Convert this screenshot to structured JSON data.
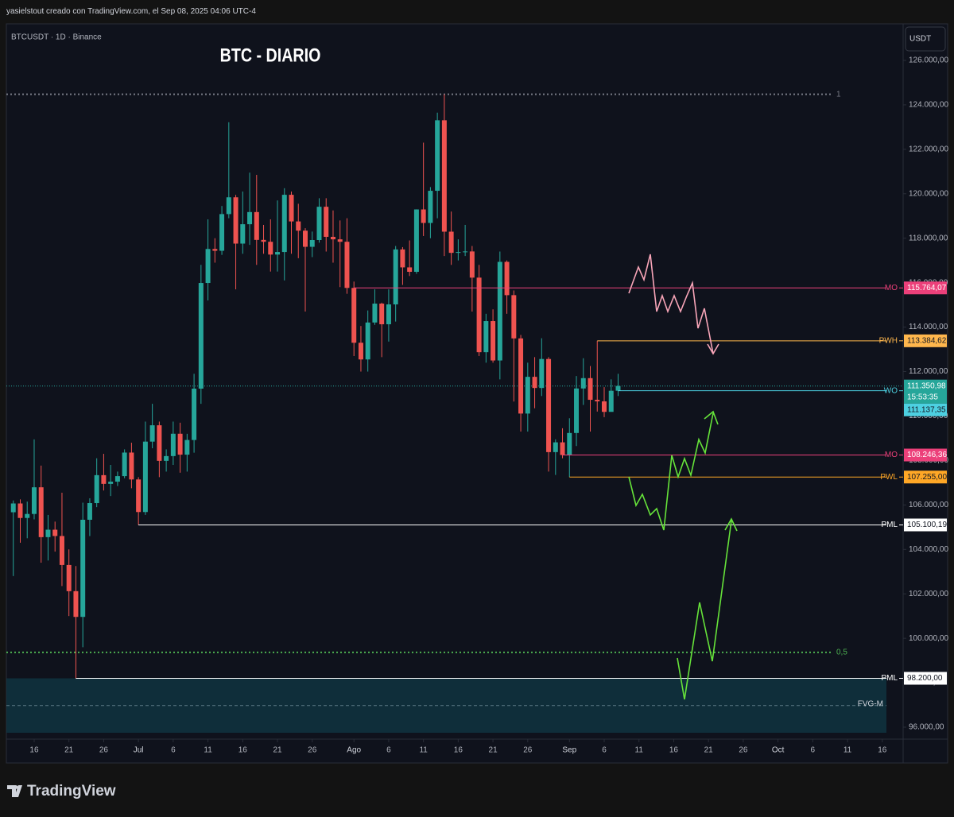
{
  "header": "yasielstout creado con TradingView.com, el Sep 08, 2025 04:06 UTC-4",
  "footer": "TradingView",
  "chart_data": {
    "type": "candlestick",
    "title": "BTC - DIARIO",
    "subtitle": "BTCUSDT · 1D · Binance",
    "currency": "USDT",
    "up_color": "#26a69a",
    "down_color": "#ef5350",
    "x": [
      "2025-06-13",
      "2025-06-14",
      "2025-06-15",
      "2025-06-16",
      "2025-06-17",
      "2025-06-18",
      "2025-06-19",
      "2025-06-20",
      "2025-06-21",
      "2025-06-22",
      "2025-06-23",
      "2025-06-24",
      "2025-06-25",
      "2025-06-26",
      "2025-06-27",
      "2025-06-28",
      "2025-06-29",
      "2025-06-30",
      "2025-07-01",
      "2025-07-02",
      "2025-07-03",
      "2025-07-04",
      "2025-07-05",
      "2025-07-06",
      "2025-07-07",
      "2025-07-08",
      "2025-07-09",
      "2025-07-10",
      "2025-07-11",
      "2025-07-12",
      "2025-07-13",
      "2025-07-14",
      "2025-07-15",
      "2025-07-16",
      "2025-07-17",
      "2025-07-18",
      "2025-07-19",
      "2025-07-20",
      "2025-07-21",
      "2025-07-22",
      "2025-07-23",
      "2025-07-24",
      "2025-07-25",
      "2025-07-26",
      "2025-07-27",
      "2025-07-28",
      "2025-07-29",
      "2025-07-30",
      "2025-07-31",
      "2025-08-01",
      "2025-08-02",
      "2025-08-03",
      "2025-08-04",
      "2025-08-05",
      "2025-08-06",
      "2025-08-07",
      "2025-08-08",
      "2025-08-09",
      "2025-08-10",
      "2025-08-11",
      "2025-08-12",
      "2025-08-13",
      "2025-08-14",
      "2025-08-15",
      "2025-08-16",
      "2025-08-17",
      "2025-08-18",
      "2025-08-19",
      "2025-08-20",
      "2025-08-21",
      "2025-08-22",
      "2025-08-23",
      "2025-08-24",
      "2025-08-25",
      "2025-08-26",
      "2025-08-27",
      "2025-08-28",
      "2025-08-29",
      "2025-08-30",
      "2025-08-31",
      "2025-09-01",
      "2025-09-02",
      "2025-09-03",
      "2025-09-04",
      "2025-09-05",
      "2025-09-06",
      "2025-09-07",
      "2025-09-08"
    ],
    "open": [
      105671,
      106066,
      105414,
      105594,
      106794,
      104551,
      104886,
      104602,
      103298,
      102120,
      100963,
      105333,
      106083,
      107340,
      106947,
      107047,
      107296,
      108356,
      107146,
      105681,
      108849,
      109584,
      107984,
      108198,
      109203,
      108262,
      108922,
      111233,
      115987,
      117516,
      117435,
      119086,
      119841,
      117758,
      118630,
      119177,
      117925,
      117840,
      117265,
      117380,
      119954,
      118755,
      118340,
      117614,
      117919,
      119415,
      118062,
      117950,
      117840,
      115764,
      113297,
      112546,
      114208,
      115058,
      114129,
      115023,
      117496,
      116688,
      116489,
      119295,
      118687,
      120134,
      123306,
      118295,
      117342,
      117380,
      117405,
      116227,
      112872,
      114271,
      112500,
      116936,
      115438,
      113493,
      110111,
      111764,
      111262,
      112566,
      108377,
      108816,
      108246,
      109237,
      111240,
      111705,
      110730,
      110659,
      110187,
      111137
    ],
    "high": [
      106200,
      106250,
      106150,
      108950,
      107770,
      105550,
      105250,
      106550,
      104000,
      103250,
      106100,
      106300,
      108100,
      108300,
      107800,
      107500,
      108500,
      108800,
      107250,
      109750,
      110550,
      109750,
      108500,
      109750,
      109700,
      109200,
      111900,
      116800,
      118850,
      118000,
      119450,
      123218,
      119950,
      120100,
      120950,
      120850,
      118600,
      118850,
      119700,
      120250,
      120100,
      119550,
      118450,
      118300,
      119800,
      119800,
      119250,
      118800,
      118900,
      116050,
      114050,
      114750,
      115700,
      115100,
      115700,
      117650,
      117600,
      117900,
      119300,
      122300,
      120300,
      123650,
      124474,
      119200,
      117950,
      118600,
      117650,
      116800,
      114600,
      114800,
      117400,
      117000,
      115650,
      113650,
      112400,
      112650,
      113500,
      112650,
      108950,
      109450,
      109900,
      111800,
      112600,
      112250,
      113384.62,
      111300,
      111650,
      111900
    ],
    "low": [
      102800,
      104300,
      104500,
      105350,
      103400,
      103500,
      103900,
      102350,
      101000,
      98200,
      99600,
      104600,
      105900,
      106650,
      106400,
      106850,
      107200,
      106750,
      105100,
      105550,
      108550,
      107250,
      107500,
      107800,
      107450,
      107500,
      108350,
      110550,
      115200,
      116900,
      117250,
      118900,
      115700,
      117300,
      117700,
      116800,
      117300,
      116500,
      116500,
      116100,
      117300,
      117100,
      114700,
      117150,
      117800,
      117400,
      116900,
      115800,
      115500,
      112700,
      112000,
      112000,
      114100,
      112650,
      113350,
      114250,
      115900,
      116300,
      116400,
      118100,
      118000,
      118900,
      117200,
      116800,
      117000,
      117200,
      114700,
      112700,
      112400,
      112400,
      111650,
      114600,
      110650,
      109300,
      109300,
      110350,
      110900,
      107500,
      107350,
      108100,
      107255,
      108650,
      110500,
      109300,
      110200,
      109950,
      110200,
      110900
    ],
    "close": [
      106066,
      105414,
      105594,
      106794,
      104551,
      104886,
      104602,
      103298,
      102120,
      100963,
      105333,
      106083,
      107340,
      106947,
      107047,
      107296,
      108356,
      107146,
      105681,
      108849,
      109584,
      107984,
      108198,
      109203,
      108262,
      108922,
      111233,
      115987,
      117516,
      117435,
      119086,
      119841,
      117758,
      118630,
      119177,
      117925,
      117840,
      117265,
      117380,
      119954,
      118755,
      118340,
      117614,
      117919,
      119415,
      118062,
      117950,
      117840,
      115764,
      113297,
      112546,
      114208,
      115058,
      114129,
      115023,
      117496,
      116688,
      116489,
      119295,
      118687,
      120134,
      123306,
      118295,
      117342,
      117380,
      117405,
      116227,
      112872,
      114271,
      112500,
      116936,
      115438,
      113493,
      110111,
      111764,
      111262,
      112566,
      108377,
      108816,
      108246,
      109237,
      111240,
      111705,
      110730,
      110659,
      110187,
      111137,
      111350.98
    ],
    "xlim": [
      "2025-06-12",
      "2025-10-19"
    ],
    "xticks": [
      {
        "value": "2025-06-16",
        "label": "16"
      },
      {
        "value": "2025-06-21",
        "label": "21"
      },
      {
        "value": "2025-06-26",
        "label": "26"
      },
      {
        "value": "2025-07-01",
        "label": "Jul"
      },
      {
        "value": "2025-07-06",
        "label": "6"
      },
      {
        "value": "2025-07-11",
        "label": "11"
      },
      {
        "value": "2025-07-16",
        "label": "16"
      },
      {
        "value": "2025-07-21",
        "label": "21"
      },
      {
        "value": "2025-07-26",
        "label": "26"
      },
      {
        "value": "2025-08-01",
        "label": "Ago"
      },
      {
        "value": "2025-08-06",
        "label": "6"
      },
      {
        "value": "2025-08-11",
        "label": "11"
      },
      {
        "value": "2025-08-16",
        "label": "16"
      },
      {
        "value": "2025-08-21",
        "label": "21"
      },
      {
        "value": "2025-08-26",
        "label": "26"
      },
      {
        "value": "2025-09-01",
        "label": "Sep"
      },
      {
        "value": "2025-09-06",
        "label": "6"
      },
      {
        "value": "2025-09-11",
        "label": "11"
      },
      {
        "value": "2025-09-16",
        "label": "16"
      },
      {
        "value": "2025-09-21",
        "label": "21"
      },
      {
        "value": "2025-09-26",
        "label": "26"
      },
      {
        "value": "2025-10-01",
        "label": "Oct"
      },
      {
        "value": "2025-10-06",
        "label": "6"
      },
      {
        "value": "2025-10-11",
        "label": "11"
      },
      {
        "value": "2025-10-16",
        "label": "16"
      }
    ],
    "ylim": [
      95464,
      127645
    ],
    "yticks": [
      {
        "value": 96000,
        "label": "96.000,00"
      },
      {
        "value": 98000,
        "label": "98.000,00"
      },
      {
        "value": 100000,
        "label": "100.000,00"
      },
      {
        "value": 102000,
        "label": "102.000,00"
      },
      {
        "value": 104000,
        "label": "104.000,00"
      },
      {
        "value": 106000,
        "label": "106.000,00"
      },
      {
        "value": 108000,
        "label": "108.000,00"
      },
      {
        "value": 110000,
        "label": "110.000,00"
      },
      {
        "value": 112000,
        "label": "112.000,00"
      },
      {
        "value": 114000,
        "label": "114.000,00"
      },
      {
        "value": 116000,
        "label": "116.000,00"
      },
      {
        "value": 118000,
        "label": "118.000,00"
      },
      {
        "value": 120000,
        "label": "120.000,00"
      },
      {
        "value": 122000,
        "label": "122.000,00"
      },
      {
        "value": 124000,
        "label": "124.000,00"
      },
      {
        "value": 126000,
        "label": "126.000,00"
      }
    ],
    "last_price": {
      "value": 111350.98,
      "label": "111.350,98",
      "countdown": "15:53:35",
      "color": "#26a69a"
    },
    "levels": [
      {
        "name": "MO",
        "value": 115764.07,
        "label": "115.764,07",
        "color": "#ec407a",
        "from": "2025-08-01"
      },
      {
        "name": "PWH",
        "value": 113384.62,
        "label": "113.384,62",
        "color": "#ffb74d",
        "from": "2025-09-05"
      },
      {
        "name": "WO",
        "value": 111137.35,
        "label": "111.137,35",
        "color": "#4dd0e1",
        "from": "2025-09-08"
      },
      {
        "name": "MO",
        "value": 108246.36,
        "label": "108.246,36",
        "color": "#ec407a",
        "from": "2025-08-31"
      },
      {
        "name": "PWL",
        "value": 107255.0,
        "label": "107.255,00",
        "color": "#ffa726",
        "from": "2025-09-01"
      },
      {
        "name": "PML",
        "value": 105100.19,
        "label": "105.100,19",
        "color": "#ffffff",
        "from": "2025-07-01"
      },
      {
        "name": "PML",
        "value": 98200.0,
        "label": "98.200,00",
        "color": "#ffffff",
        "from": "2025-06-22"
      }
    ],
    "fib": [
      {
        "label": "1",
        "value": 124474,
        "color": "#787b86"
      },
      {
        "label": "0,5",
        "value": 99364,
        "color": "#4caf50"
      }
    ],
    "zone": {
      "name": "FVG-M",
      "ylim": [
        95750,
        98200
      ],
      "color": "#0f3a47"
    }
  }
}
